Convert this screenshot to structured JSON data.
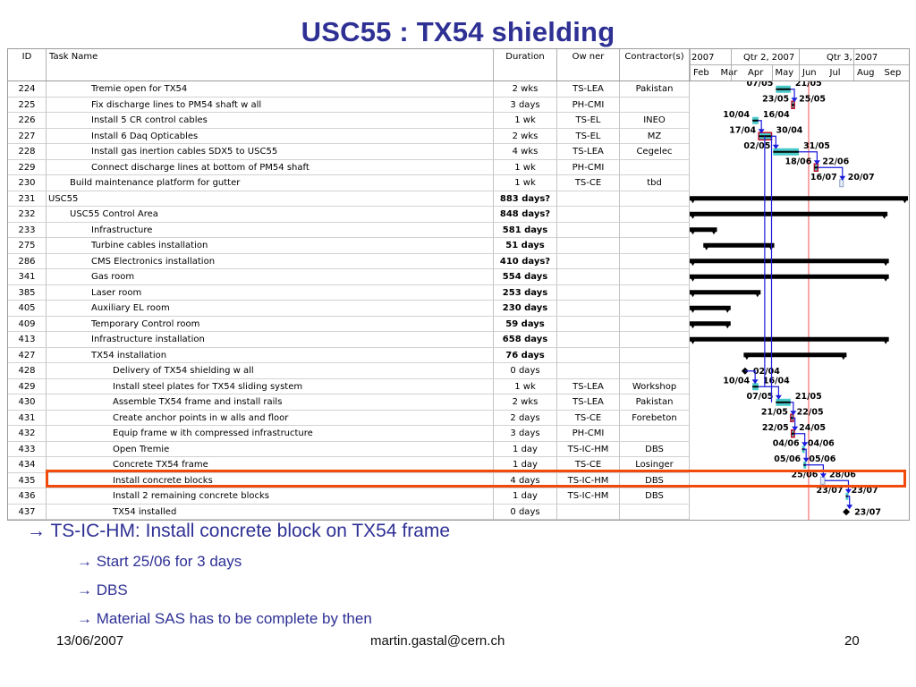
{
  "title": "USC55 : TX54 shielding",
  "table": {
    "headers": {
      "id": "ID",
      "name": "Task Name",
      "duration": "Duration",
      "owner": "Ow ner",
      "contractor": "Contractor(s)"
    },
    "rows": [
      {
        "id": "224",
        "indent": 2,
        "name": "Tremie open for TX54",
        "duration": "2 wks",
        "owner": "TS-LEA",
        "contractor": "Pakistan",
        "bold": false
      },
      {
        "id": "225",
        "indent": 2,
        "name": "Fix discharge lines to PM54 shaft w all",
        "duration": "3 days",
        "owner": "PH-CMI",
        "contractor": "",
        "bold": false
      },
      {
        "id": "226",
        "indent": 2,
        "name": "Install 5 CR control cables",
        "duration": "1 wk",
        "owner": "TS-EL",
        "contractor": "INEO",
        "bold": false
      },
      {
        "id": "227",
        "indent": 2,
        "name": "Install 6 Daq Opticables",
        "duration": "2 wks",
        "owner": "TS-EL",
        "contractor": "MZ",
        "bold": false
      },
      {
        "id": "228",
        "indent": 2,
        "name": "Install gas inertion cables SDX5 to USC55",
        "duration": "4 wks",
        "owner": "TS-LEA",
        "contractor": "Cegelec",
        "bold": false
      },
      {
        "id": "229",
        "indent": 2,
        "name": "Connect discharge lines at bottom of PM54 shaft",
        "duration": "1 wk",
        "owner": "PH-CMI",
        "contractor": "",
        "bold": false
      },
      {
        "id": "230",
        "indent": 1,
        "name": "Build maintenance platform for gutter",
        "duration": "1 wk",
        "owner": "TS-CE",
        "contractor": "tbd",
        "bold": false
      },
      {
        "id": "231",
        "indent": 0,
        "name": "USC55",
        "duration": "883 days?",
        "owner": "",
        "contractor": "",
        "bold": true
      },
      {
        "id": "232",
        "indent": 1,
        "name": "USC55 Control Area",
        "duration": "848 days?",
        "owner": "",
        "contractor": "",
        "bold": true
      },
      {
        "id": "233",
        "indent": 2,
        "name": "Infrastructure",
        "duration": "581 days",
        "owner": "",
        "contractor": "",
        "bold": true
      },
      {
        "id": "275",
        "indent": 2,
        "name": "Turbine cables installation",
        "duration": "51 days",
        "owner": "",
        "contractor": "",
        "bold": true
      },
      {
        "id": "286",
        "indent": 2,
        "name": "CMS Electronics installation",
        "duration": "410 days?",
        "owner": "",
        "contractor": "",
        "bold": true
      },
      {
        "id": "341",
        "indent": 2,
        "name": "Gas room",
        "duration": "554 days",
        "owner": "",
        "contractor": "",
        "bold": true
      },
      {
        "id": "385",
        "indent": 2,
        "name": "Laser room",
        "duration": "253 days",
        "owner": "",
        "contractor": "",
        "bold": true
      },
      {
        "id": "405",
        "indent": 2,
        "name": "Auxiliary EL room",
        "duration": "230 days",
        "owner": "",
        "contractor": "",
        "bold": true
      },
      {
        "id": "409",
        "indent": 2,
        "name": "Temporary Control room",
        "duration": "59 days",
        "owner": "",
        "contractor": "",
        "bold": true
      },
      {
        "id": "413",
        "indent": 2,
        "name": "Infrastructure installation",
        "duration": "658 days",
        "owner": "",
        "contractor": "",
        "bold": true
      },
      {
        "id": "427",
        "indent": 2,
        "name": "TX54 installation",
        "duration": "76 days",
        "owner": "",
        "contractor": "",
        "bold": true
      },
      {
        "id": "428",
        "indent": 3,
        "name": "Delivery of TX54 shielding w all",
        "duration": "0 days",
        "owner": "",
        "contractor": "",
        "bold": false
      },
      {
        "id": "429",
        "indent": 3,
        "name": "Install steel plates for TX54 sliding system",
        "duration": "1 wk",
        "owner": "TS-LEA",
        "contractor": "Workshop",
        "bold": false
      },
      {
        "id": "430",
        "indent": 3,
        "name": "Assemble TX54 frame and install rails",
        "duration": "2 wks",
        "owner": "TS-LEA",
        "contractor": "Pakistan",
        "bold": false
      },
      {
        "id": "431",
        "indent": 3,
        "name": "Create anchor points in w alls and floor",
        "duration": "2 days",
        "owner": "TS-CE",
        "contractor": "Forebeton",
        "bold": false
      },
      {
        "id": "432",
        "indent": 3,
        "name": "Equip frame w ith compressed infrastructure",
        "duration": "3 days",
        "owner": "PH-CMI",
        "contractor": "",
        "bold": false
      },
      {
        "id": "433",
        "indent": 3,
        "name": "Open Tremie",
        "duration": "1 day",
        "owner": "TS-IC-HM",
        "contractor": "DBS",
        "bold": false
      },
      {
        "id": "434",
        "indent": 3,
        "name": "Concrete TX54 frame",
        "duration": "1 day",
        "owner": "TS-CE",
        "contractor": "Losinger",
        "bold": false
      },
      {
        "id": "435",
        "indent": 3,
        "name": "Install concrete blocks",
        "duration": "4 days",
        "owner": "TS-IC-HM",
        "contractor": "DBS",
        "bold": false
      },
      {
        "id": "436",
        "indent": 3,
        "name": "Install 2 remaining concrete blocks",
        "duration": "1 day",
        "owner": "TS-IC-HM",
        "contractor": "DBS",
        "bold": false
      },
      {
        "id": "437",
        "indent": 3,
        "name": "TX54 installed",
        "duration": "0 days",
        "owner": "",
        "contractor": "",
        "bold": false
      }
    ]
  },
  "gantt": {
    "top_labels": [
      "2007",
      "Qtr 2, 2007",
      "Qtr 3, 2007"
    ],
    "months": [
      "Feb",
      "Mar",
      "Apr",
      "May",
      "Jun",
      "Jul",
      "Aug",
      "Sep"
    ],
    "colors": {
      "summary": "#000000",
      "task_fill": "#49c9c9",
      "link": "#1a1adc",
      "today": "#f05050",
      "critical": "#c0102a"
    },
    "items": [
      {
        "row": 0,
        "kind": "task",
        "start": 3.16,
        "end": 3.7,
        "start_label": "07/05",
        "end_label": "21/05"
      },
      {
        "row": 1,
        "kind": "task",
        "start": 3.74,
        "end": 3.84,
        "start_label": "23/05",
        "end_label": "25/05",
        "critical": true
      },
      {
        "row": 2,
        "kind": "task",
        "start": 2.3,
        "end": 2.52,
        "start_label": "10/04",
        "end_label": "16/04"
      },
      {
        "row": 3,
        "kind": "task",
        "start": 2.53,
        "end": 3.0,
        "start_label": "17/04",
        "end_label": "30/04",
        "critical": true
      },
      {
        "row": 4,
        "kind": "task",
        "start": 3.06,
        "end": 4.0,
        "start_label": "02/05",
        "end_label": "31/05"
      },
      {
        "row": 5,
        "kind": "task",
        "start": 4.57,
        "end": 4.7,
        "start_label": "18/06",
        "end_label": "22/06",
        "critical": true
      },
      {
        "row": 6,
        "kind": "task",
        "start": 5.5,
        "end": 5.63,
        "start_label": "16/07",
        "end_label": "20/07",
        "hollow": true
      },
      {
        "row": 7,
        "kind": "summary",
        "start": 0.0,
        "end": 8.0
      },
      {
        "row": 8,
        "kind": "summary",
        "start": 0.0,
        "end": 7.25
      },
      {
        "row": 9,
        "kind": "summary",
        "start": 0.0,
        "end": 1.0
      },
      {
        "row": 10,
        "kind": "summary",
        "start": 0.5,
        "end": 3.1
      },
      {
        "row": 11,
        "kind": "summary",
        "start": 0.0,
        "end": 7.3
      },
      {
        "row": 12,
        "kind": "summary",
        "start": 0.0,
        "end": 7.3
      },
      {
        "row": 13,
        "kind": "summary",
        "start": 0.0,
        "end": 2.6
      },
      {
        "row": 14,
        "kind": "summary",
        "start": 0.0,
        "end": 1.5
      },
      {
        "row": 15,
        "kind": "summary",
        "start": 0.0,
        "end": 1.5
      },
      {
        "row": 16,
        "kind": "summary",
        "start": 0.0,
        "end": 7.3
      },
      {
        "row": 17,
        "kind": "summary",
        "start": 1.98,
        "end": 5.75
      },
      {
        "row": 18,
        "kind": "milestone",
        "start": 2.03,
        "end_label": "02/04"
      },
      {
        "row": 19,
        "kind": "task",
        "start": 2.3,
        "end": 2.52,
        "start_label": "10/04",
        "end_label": "16/04"
      },
      {
        "row": 20,
        "kind": "task",
        "start": 3.16,
        "end": 3.7,
        "start_label": "07/05",
        "end_label": "21/05"
      },
      {
        "row": 21,
        "kind": "task",
        "start": 3.7,
        "end": 3.76,
        "start_label": "21/05",
        "end_label": "22/05",
        "critical": true
      },
      {
        "row": 22,
        "kind": "task",
        "start": 3.73,
        "end": 3.84,
        "start_label": "22/05",
        "end_label": "24/05",
        "critical": true
      },
      {
        "row": 23,
        "kind": "task",
        "start": 4.12,
        "end": 4.16,
        "start_label": "04/06",
        "end_label": "04/06"
      },
      {
        "row": 24,
        "kind": "task",
        "start": 4.17,
        "end": 4.21,
        "start_label": "05/06",
        "end_label": "05/06"
      },
      {
        "row": 25,
        "kind": "task",
        "start": 4.8,
        "end": 4.95,
        "start_label": "25/06",
        "end_label": "28/06",
        "hollow": true
      },
      {
        "row": 26,
        "kind": "task",
        "start": 5.72,
        "end": 5.76,
        "start_label": "23/07",
        "end_label": "23/07"
      },
      {
        "row": 27,
        "kind": "milestone",
        "start": 5.74,
        "end_label": "23/07"
      }
    ]
  },
  "bullets": [
    {
      "level": 1,
      "text": "TS-IC-HM: Install concrete block on TX54 frame"
    },
    {
      "level": 2,
      "text": "Start 25/06 for 3 days"
    },
    {
      "level": 2,
      "text": "DBS"
    },
    {
      "level": 2,
      "text": "Material SAS has to be complete by then"
    }
  ],
  "bullet_marker": "→",
  "footer": {
    "date": "13/06/2007",
    "email": "martin.gastal@cern.ch",
    "page": "20"
  }
}
